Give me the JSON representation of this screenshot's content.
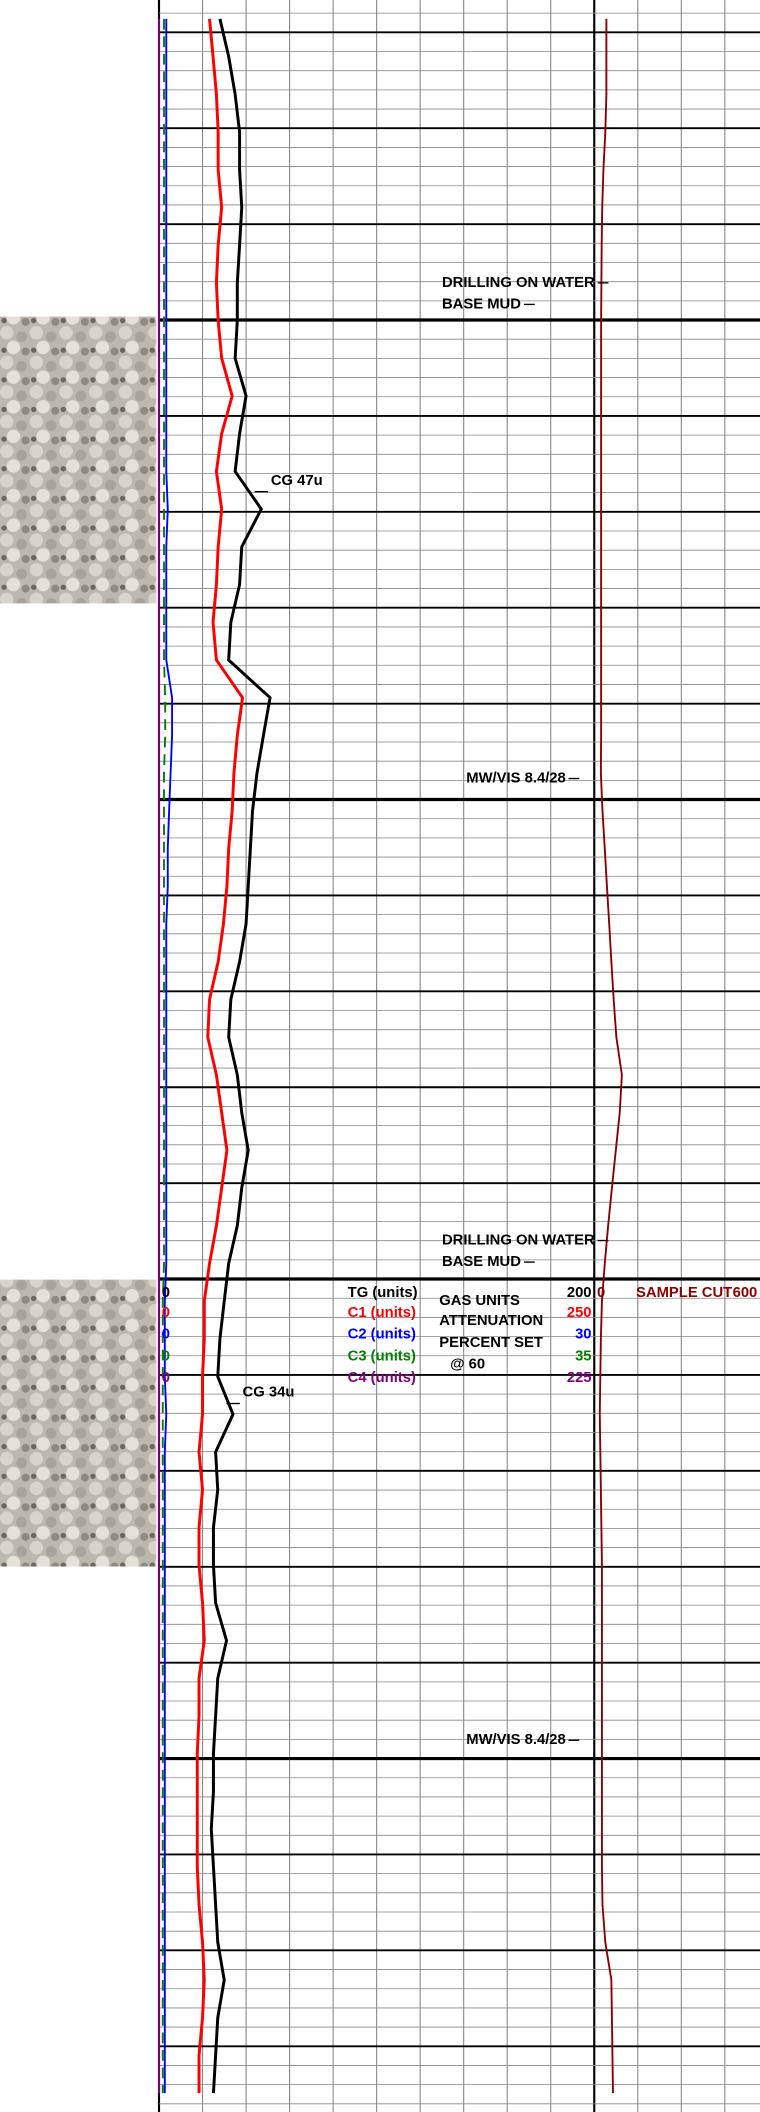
{
  "chart_data": {
    "type": "line",
    "categories": [
      null,
      null,
      null,
      null,
      null,
      null,
      null,
      null,
      null,
      null,
      null,
      null,
      null,
      null,
      null,
      null,
      null,
      null,
      null,
      null,
      null,
      null,
      null,
      null,
      null,
      null,
      null,
      null,
      null,
      null,
      null,
      null,
      null,
      null,
      null,
      null,
      null,
      null,
      null,
      null,
      null,
      null,
      null,
      null,
      null,
      null,
      null,
      null,
      null,
      null,
      null,
      null,
      null,
      null,
      null,
      null
    ],
    "series": [
      {
        "name": "TG (units)",
        "color": "#000000",
        "xlim": [
          0,
          200
        ],
        "values": [
          28,
          32,
          35,
          37,
          37,
          38,
          37,
          36,
          36,
          35,
          40,
          37,
          35,
          47,
          38,
          37,
          33,
          32,
          51,
          48,
          45,
          43,
          42,
          41,
          40,
          37,
          33,
          32,
          36,
          38,
          41,
          38,
          36,
          32,
          30,
          28,
          27,
          34,
          26,
          27,
          25,
          25,
          26,
          31,
          27,
          26,
          25,
          25,
          24,
          25,
          26,
          27,
          30,
          27,
          26,
          25
        ]
      },
      {
        "name": "C1 (units)",
        "color": "#ff0000",
        "xlim": [
          0,
          250
        ],
        "values": [
          29,
          31,
          33,
          34,
          34,
          36,
          34,
          33,
          34,
          36,
          42,
          36,
          33,
          36,
          34,
          33,
          31,
          33,
          48,
          45,
          43,
          42,
          40,
          39,
          37,
          34,
          29,
          28,
          33,
          36,
          39,
          36,
          33,
          29,
          26,
          26,
          25,
          25,
          23,
          25,
          23,
          23,
          25,
          26,
          23,
          23,
          22,
          22,
          22,
          22,
          23,
          25,
          26,
          25,
          23,
          23
        ]
      },
      {
        "name": "C2 (units)",
        "color": "#0000ff",
        "xlim": [
          0,
          30
        ],
        "values": [
          0.5,
          0.5,
          0.5,
          0.5,
          0.5,
          0.5,
          0.5,
          0.5,
          0.5,
          0.5,
          0.5,
          0.5,
          0.5,
          0.6,
          0.5,
          0.5,
          0.5,
          0.5,
          0.9,
          0.9,
          0.8,
          0.7,
          0.6,
          0.6,
          0.5,
          0.5,
          0.5,
          0.5,
          0.5,
          0.5,
          0.5,
          0.5,
          0.5,
          0.5,
          0.4,
          0.4,
          0.4,
          0.5,
          0.4,
          0.4,
          0.4,
          0.4,
          0.4,
          0.4,
          0.4,
          0.4,
          0.4,
          0.4,
          0.4,
          0.4,
          0.4,
          0.4,
          0.4,
          0.4,
          0.4,
          0.4
        ]
      },
      {
        "name": "C3 (units)",
        "color": "#008000",
        "xlim": [
          0,
          35
        ],
        "dashed": true,
        "values": [
          0.4,
          0.4,
          0.4,
          0.4,
          0.4,
          0.4,
          0.4,
          0.4,
          0.4,
          0.4,
          0.4,
          0.4,
          0.4,
          0.4,
          0.4,
          0.4,
          0.4,
          0.4,
          0.5,
          0.5,
          0.4,
          0.4,
          0.4,
          0.4,
          0.4,
          0.4,
          0.4,
          0.4,
          0.4,
          0.4,
          0.4,
          0.4,
          0.4,
          0.4,
          0.3,
          0.3,
          0.3,
          0.3,
          0.3,
          0.3,
          0.3,
          0.3,
          0.3,
          0.3,
          0.3,
          0.3,
          0.3,
          0.3,
          0.3,
          0.3,
          0.3,
          0.3,
          0.3,
          0.3,
          0.3,
          0.3
        ]
      },
      {
        "name": "C4 (units)",
        "color": "#800080",
        "xlim": [
          0,
          225
        ],
        "values": [
          0,
          0,
          0,
          0,
          0,
          0,
          0,
          0,
          0,
          0,
          0,
          0,
          0,
          0,
          0,
          0,
          0,
          0,
          0,
          0,
          0,
          0,
          0,
          0,
          0,
          0,
          0,
          0,
          0,
          0,
          0,
          0,
          0,
          0,
          0,
          0,
          0,
          0,
          0,
          0,
          0,
          0,
          0,
          0,
          0,
          0,
          0,
          0,
          0,
          0,
          0,
          0,
          0,
          0,
          0,
          0
        ]
      },
      {
        "name": "SAMPLE CUT",
        "color": "#8b0000",
        "xlim": [
          0,
          600
        ],
        "track": "right",
        "values": [
          44,
          44,
          44,
          40,
          33,
          29,
          27,
          26,
          25,
          25,
          25,
          25,
          25,
          25,
          25,
          25,
          25,
          25,
          25,
          25,
          24,
          30,
          38,
          46,
          54,
          62,
          70,
          80,
          100,
          92,
          78,
          64,
          50,
          38,
          28,
          24,
          22,
          20,
          22,
          24,
          26,
          28,
          28,
          28,
          28,
          28,
          28,
          28,
          28,
          28,
          30,
          40,
          62,
          64,
          66,
          68
        ]
      }
    ],
    "annotations": [
      "DRILLING ON WATER",
      "BASE MUD",
      "MW/VIS  8.4/28",
      "CG 47u",
      "CG 34u",
      "DRILLING ON WATER",
      "BASE MUD",
      "MW/VIS  8.4/28"
    ],
    "scale_note": [
      "GAS UNITS",
      "ATTENUATION",
      "PERCENT SET",
      "@ 60"
    ],
    "grid": true
  }
}
